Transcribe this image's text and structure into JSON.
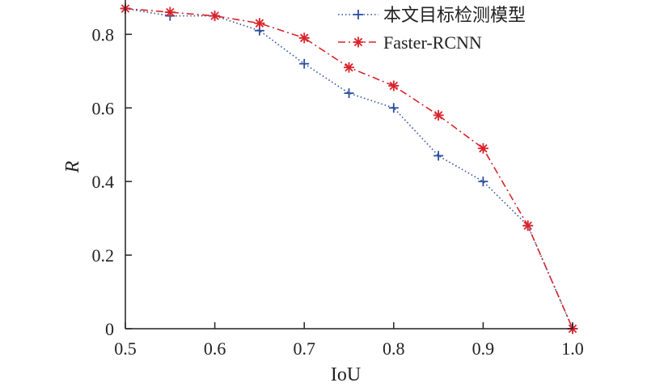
{
  "chart_data": {
    "type": "line",
    "xlabel": "IoU",
    "ylabel": "R",
    "xlim": [
      0.5,
      1.0
    ],
    "ylim": [
      0,
      0.88
    ],
    "xticks": [
      "0.5",
      "0.6",
      "0.7",
      "0.8",
      "0.9",
      "1.0"
    ],
    "yticks": [
      "0",
      "0.2",
      "0.4",
      "0.6",
      "0.8"
    ],
    "x": [
      0.5,
      0.55,
      0.6,
      0.65,
      0.7,
      0.75,
      0.8,
      0.85,
      0.9,
      0.95,
      1.0
    ],
    "series": [
      {
        "name": "本文目标检测模型",
        "values": [
          0.87,
          0.85,
          0.85,
          0.81,
          0.72,
          0.64,
          0.6,
          0.47,
          0.4,
          0.28,
          0.0
        ],
        "color": "#2b4fa0",
        "line_style": "dotted",
        "marker": "plus"
      },
      {
        "name": "Faster-RCNN",
        "values": [
          0.87,
          0.86,
          0.85,
          0.83,
          0.79,
          0.71,
          0.66,
          0.58,
          0.49,
          0.28,
          0.0
        ],
        "color": "#d9232b",
        "line_style": "dash-dot",
        "marker": "asterisk"
      }
    ],
    "legend_position": "top-right",
    "grid": false
  }
}
